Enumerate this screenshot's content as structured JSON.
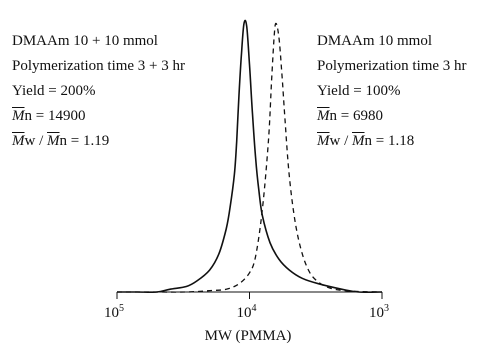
{
  "chart_data": {
    "type": "line",
    "xlabel": "MW (PMMA)",
    "x_scale": "log",
    "x_reversed": true,
    "xlim": [
      100000,
      1000
    ],
    "ylim": [
      0,
      1
    ],
    "x_ticks": [
      {
        "value": 100000,
        "base": "10",
        "exp": "5"
      },
      {
        "value": 10000,
        "base": "10",
        "exp": "4"
      },
      {
        "value": 1000,
        "base": "10",
        "exp": "3"
      }
    ],
    "series": [
      {
        "style": "solid",
        "x": [
          100000,
          70000,
          50000,
          40000,
          30000,
          25000,
          20000,
          17000,
          15000,
          14000,
          13000,
          12500,
          12000,
          11500,
          11000,
          10500,
          10000,
          9500,
          9000,
          8500,
          8000,
          7000,
          6000,
          5000,
          4000,
          3000,
          2000,
          1500,
          1000
        ],
        "y": [
          0.0,
          0.0,
          0.0,
          0.01,
          0.02,
          0.04,
          0.08,
          0.14,
          0.23,
          0.31,
          0.43,
          0.55,
          0.72,
          0.87,
          0.98,
          0.97,
          0.83,
          0.65,
          0.49,
          0.37,
          0.28,
          0.18,
          0.12,
          0.08,
          0.05,
          0.03,
          0.01,
          0.0,
          0.0
        ]
      },
      {
        "style": "dashed",
        "x": [
          100000,
          50000,
          30000,
          20000,
          15000,
          12000,
          10000,
          9000,
          8000,
          7200,
          6800,
          6500,
          6300,
          6000,
          5700,
          5400,
          5000,
          4500,
          4000,
          3500,
          3000,
          2500,
          2000,
          1500,
          1000
        ],
        "y": [
          0.0,
          0.0,
          0.0,
          0.005,
          0.01,
          0.03,
          0.07,
          0.13,
          0.3,
          0.55,
          0.78,
          0.94,
          0.98,
          0.93,
          0.8,
          0.63,
          0.42,
          0.25,
          0.14,
          0.07,
          0.035,
          0.015,
          0.006,
          0.002,
          0.0
        ]
      }
    ],
    "annotations": {
      "left": [
        {
          "text": "DMAAm 10 + 10 mmol"
        },
        {
          "text": "Polymerization time 3 + 3 hr"
        },
        {
          "text": "Yield = 200%"
        },
        {
          "mn_symbol": "M",
          "mn_sub": "n",
          "mn_value": " = 14900"
        },
        {
          "mw_symbol": "M",
          "mw_sub": "w",
          "sep": " / ",
          "mn_symbol": "M",
          "mn_sub": "n",
          "value": " = 1.19"
        }
      ],
      "right": [
        {
          "text": "DMAAm 10 mmol"
        },
        {
          "text": "Polymerization time 3 hr"
        },
        {
          "text": "Yield = 100%"
        },
        {
          "mn_symbol": "M",
          "mn_sub": "n",
          "mn_value": " = 6980"
        },
        {
          "mw_symbol": "M",
          "mw_sub": "w",
          "sep": " / ",
          "mn_symbol": "M",
          "mn_sub": "n",
          "value": " = 1.18"
        }
      ]
    }
  }
}
